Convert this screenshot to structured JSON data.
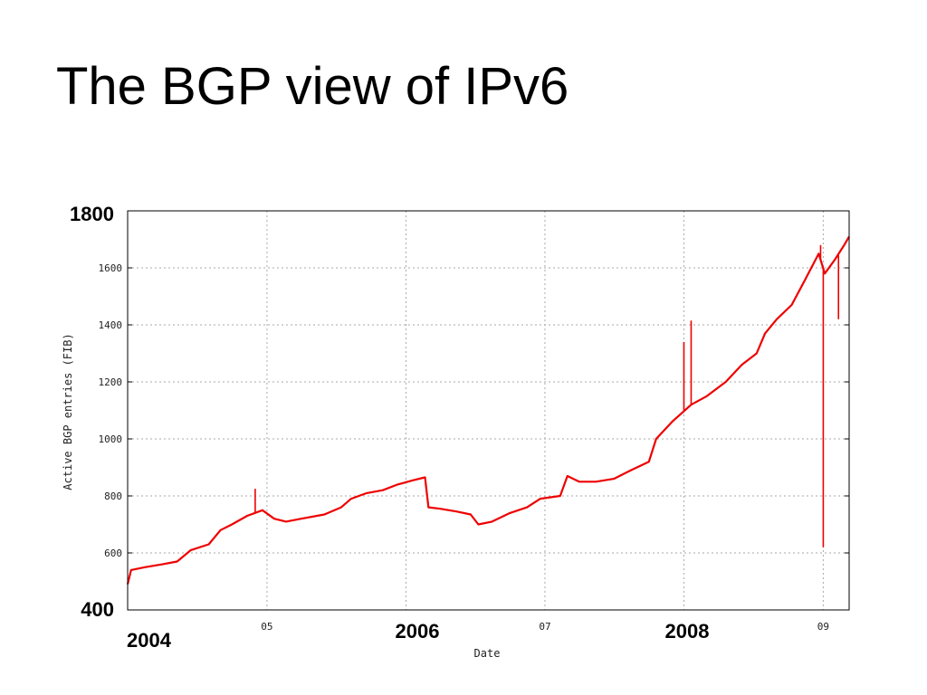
{
  "slide": {
    "title": "The BGP view of IPv6"
  },
  "colors": {
    "series": "#ee0000",
    "grid": "#aaaaaa",
    "frame": "#000000"
  },
  "chart_data": {
    "type": "line",
    "title": "",
    "xlabel": "Date",
    "ylabel": "Active BGP entries (FIB)",
    "xlim": [
      "2004-01-01",
      "2009-03-10"
    ],
    "ylim": [
      400,
      1800
    ],
    "grid": true,
    "legend": "none",
    "y_ticks": [
      600,
      800,
      1000,
      1200,
      1400,
      1600
    ],
    "x_ticks": [
      {
        "date": "2005-01-01",
        "label": "05"
      },
      {
        "date": "2006-01-01",
        "label": ""
      },
      {
        "date": "2007-01-01",
        "label": "07"
      },
      {
        "date": "2008-01-01",
        "label": ""
      },
      {
        "date": "2009-01-01",
        "label": "09"
      }
    ],
    "overlay_labels": {
      "y_top": "1800",
      "y_bottom": "400",
      "x_2004": "2004",
      "x_2006": "2006",
      "x_2008": "2008"
    },
    "series": [
      {
        "points": [
          [
            "2004-01-01",
            490
          ],
          [
            "2004-01-10",
            540
          ],
          [
            "2004-02-15",
            550
          ],
          [
            "2004-04-01",
            560
          ],
          [
            "2004-05-10",
            570
          ],
          [
            "2004-06-15",
            610
          ],
          [
            "2004-08-01",
            630
          ],
          [
            "2004-09-01",
            680
          ],
          [
            "2004-10-01",
            700
          ],
          [
            "2004-11-10",
            730
          ],
          [
            "2004-12-20",
            750
          ],
          [
            "2005-01-20",
            720
          ],
          [
            "2005-02-20",
            710
          ],
          [
            "2005-04-01",
            720
          ],
          [
            "2005-06-01",
            735
          ],
          [
            "2005-07-15",
            760
          ],
          [
            "2005-08-10",
            790
          ],
          [
            "2005-09-20",
            810
          ],
          [
            "2005-11-01",
            820
          ],
          [
            "2005-12-10",
            840
          ],
          [
            "2006-01-20",
            855
          ],
          [
            "2006-02-20",
            865
          ],
          [
            "2006-03-01",
            760
          ],
          [
            "2006-04-01",
            755
          ],
          [
            "2006-05-15",
            745
          ],
          [
            "2006-06-20",
            735
          ],
          [
            "2006-07-10",
            700
          ],
          [
            "2006-08-15",
            710
          ],
          [
            "2006-10-01",
            740
          ],
          [
            "2006-11-15",
            760
          ],
          [
            "2006-12-20",
            790
          ],
          [
            "2007-02-10",
            800
          ],
          [
            "2007-03-01",
            870
          ],
          [
            "2007-04-01",
            850
          ],
          [
            "2007-05-15",
            850
          ],
          [
            "2007-07-01",
            860
          ],
          [
            "2007-08-15",
            890
          ],
          [
            "2007-10-01",
            920
          ],
          [
            "2007-10-20",
            1000
          ],
          [
            "2007-12-01",
            1060
          ],
          [
            "2008-01-20",
            1120
          ],
          [
            "2008-03-01",
            1150
          ],
          [
            "2008-04-20",
            1200
          ],
          [
            "2008-06-01",
            1260
          ],
          [
            "2008-07-10",
            1300
          ],
          [
            "2008-08-01",
            1370
          ],
          [
            "2008-09-01",
            1420
          ],
          [
            "2008-10-10",
            1470
          ],
          [
            "2008-11-15",
            1560
          ],
          [
            "2008-12-20",
            1650
          ],
          [
            "2009-01-05",
            1580
          ],
          [
            "2009-02-01",
            1630
          ],
          [
            "2009-02-25",
            1680
          ],
          [
            "2009-03-10",
            1710
          ]
        ],
        "spikes": [
          [
            "2004-12-01",
            825
          ],
          [
            "2008-01-01",
            1340
          ],
          [
            "2008-01-20",
            1415
          ],
          [
            "2008-12-25",
            1680
          ],
          [
            "2009-01-01",
            620
          ],
          [
            "2009-02-10",
            1420
          ]
        ]
      }
    ]
  }
}
